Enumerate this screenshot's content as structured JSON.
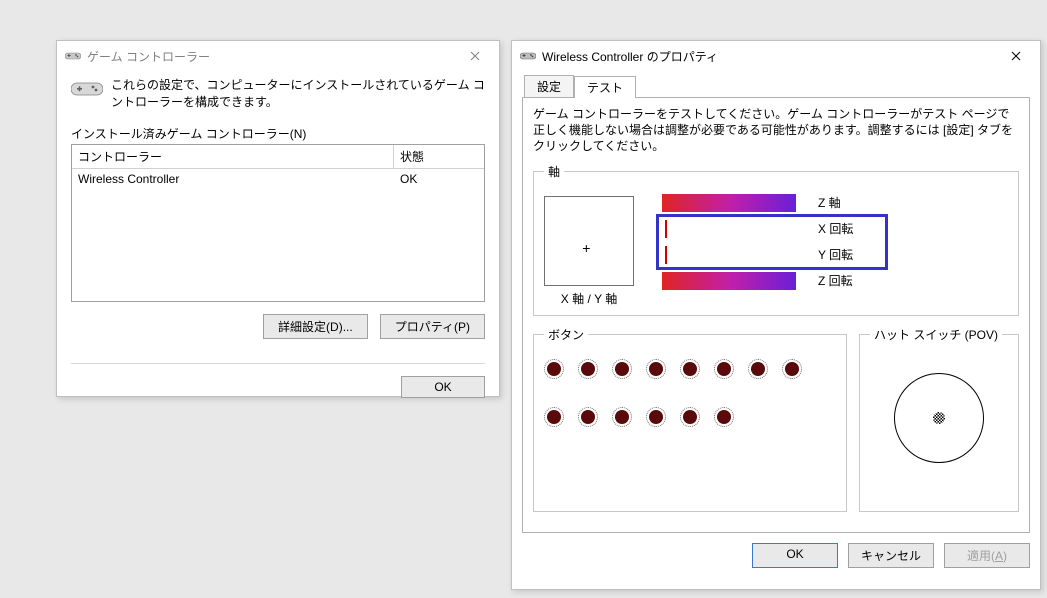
{
  "win1": {
    "title": "ゲーム コントローラー",
    "intro": "これらの設定で、コンピューターにインストールされているゲーム コントローラーを構成できます。",
    "list_label": "インストール済みゲーム コントローラー(N)",
    "columns": {
      "name": "コントローラー",
      "status": "状態"
    },
    "rows": [
      {
        "name": "Wireless Controller",
        "status": "OK"
      }
    ],
    "buttons": {
      "advanced": "詳細設定(D)...",
      "properties": "プロパティ(P)",
      "ok": "OK"
    }
  },
  "win2": {
    "title": "Wireless Controller のプロパティ",
    "tabs": {
      "settings": "設定",
      "test": "テスト"
    },
    "active_tab": "test",
    "instruction": "ゲーム コントローラーをテストしてください。ゲーム コントローラーがテスト ページで正しく機能しない場合は調整が必要である可能性があります。調整するには [設定] タブをクリックしてください。",
    "axis_group": {
      "legend": "軸",
      "xy_caption": "X 軸 / Y 軸",
      "cross_pos": {
        "left_pct": 48,
        "top_pct": 60
      },
      "bars": [
        {
          "label": "Z 軸",
          "type": "gradient",
          "marker_pct": null,
          "colors": [
            "#e02424",
            "#c21fa8",
            "#6a1fd6"
          ]
        },
        {
          "label": "X 回転",
          "type": "empty",
          "marker_pct": 2,
          "colors": []
        },
        {
          "label": "Y 回転",
          "type": "empty",
          "marker_pct": 2,
          "colors": []
        },
        {
          "label": "Z 回転",
          "type": "gradient",
          "marker_pct": null,
          "colors": [
            "#e02424",
            "#c21fa8",
            "#6a1fd6"
          ]
        }
      ],
      "highlight": {
        "rows": [
          1,
          2
        ]
      }
    },
    "buttons_group": {
      "legend": "ボタン",
      "count": 14,
      "per_row": 8,
      "dot_fill": "#5a0a0a",
      "dot_border": "#707070"
    },
    "pov_group": {
      "legend": "ハット スイッチ (POV)"
    },
    "dlg_buttons": {
      "ok": "OK",
      "cancel": "キャンセル",
      "apply": "適用",
      "apply_accel": "A",
      "apply_enabled": false
    }
  },
  "colors": {
    "window_border": "#c0c0c0",
    "background": "#e8e8e8"
  }
}
